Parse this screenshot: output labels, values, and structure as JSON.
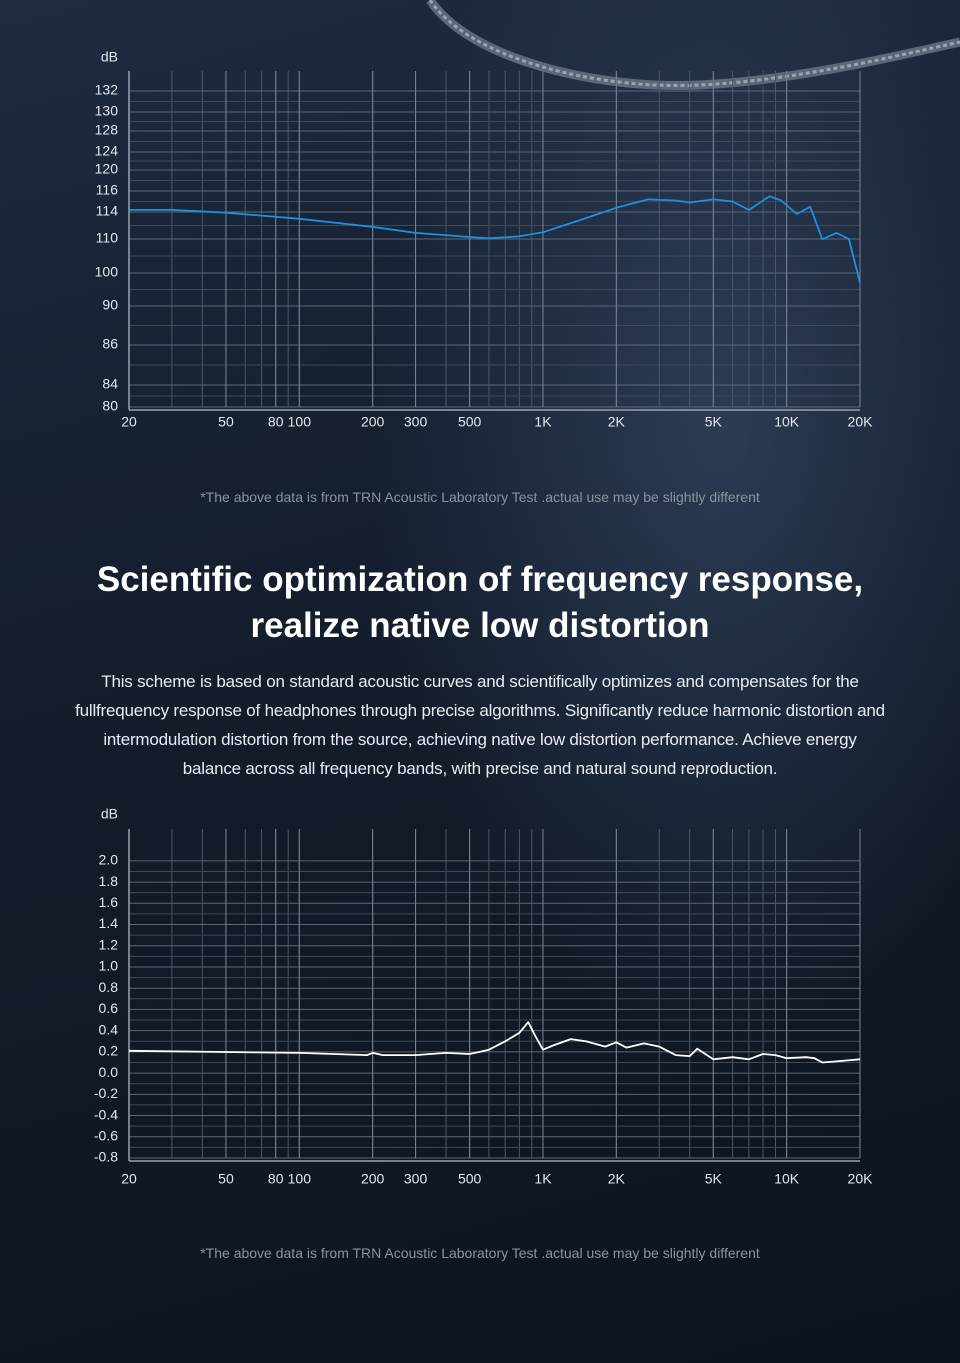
{
  "chart_data": [
    {
      "type": "line",
      "y_label": "dB",
      "xscale": "log",
      "grid": true,
      "x": [
        20,
        30,
        50,
        100,
        200,
        300,
        500,
        600,
        800,
        1000,
        1500,
        2000,
        2700,
        3500,
        4000,
        5000,
        6000,
        7000,
        8500,
        9500,
        11000,
        12500,
        14000,
        16000,
        18000,
        20000
      ],
      "series": [
        {
          "color": "#1f8fe0",
          "values": [
            114.2,
            114.2,
            113.9,
            113,
            111.8,
            110.9,
            110.3,
            110.1,
            110.4,
            111,
            113.1,
            114.4,
            115.2,
            115.1,
            114.9,
            115.2,
            115,
            114.2,
            115.5,
            115.1,
            113.7,
            114.5,
            109.9,
            110.9,
            110,
            97
          ]
        }
      ],
      "xlim": [
        20,
        20000
      ],
      "ylim": [
        80,
        134
      ],
      "xticks": [
        20,
        50,
        80,
        100,
        200,
        300,
        500,
        {
          "value": 1000,
          "label": "1K"
        },
        {
          "value": 2000,
          "label": "2K"
        },
        {
          "value": 5000,
          "label": "5K"
        },
        {
          "value": 10000,
          "label": "10K"
        },
        {
          "value": 20000,
          "label": "20K"
        }
      ],
      "yticks": [
        80,
        84,
        86,
        90,
        100,
        110,
        114,
        116,
        120,
        124,
        128,
        130,
        132
      ],
      "note": "*The above data is from TRN Acoustic Laboratory Test .actual use may be slightly different"
    },
    {
      "type": "line",
      "y_label": "dB",
      "xscale": "log",
      "grid": true,
      "x": [
        20,
        100,
        190,
        200,
        220,
        300,
        400,
        500,
        550,
        600,
        700,
        800,
        870,
        930,
        1000,
        1100,
        1300,
        1500,
        1800,
        2000,
        2200,
        2600,
        3000,
        3500,
        4000,
        4300,
        5000,
        6000,
        7000,
        8000,
        9000,
        10000,
        12000,
        13000,
        14000,
        16000,
        20000
      ],
      "series": [
        {
          "color": "#ffffff",
          "values": [
            0.21,
            0.19,
            0.17,
            0.19,
            0.17,
            0.17,
            0.19,
            0.18,
            0.2,
            0.22,
            0.3,
            0.38,
            0.48,
            0.35,
            0.22,
            0.26,
            0.32,
            0.3,
            0.25,
            0.29,
            0.24,
            0.28,
            0.25,
            0.17,
            0.16,
            0.23,
            0.13,
            0.15,
            0.13,
            0.18,
            0.17,
            0.14,
            0.15,
            0.14,
            0.1,
            0.11,
            0.13
          ]
        }
      ],
      "xlim": [
        20,
        20000
      ],
      "ylim": [
        -0.8,
        2.3
      ],
      "xticks": [
        20,
        50,
        80,
        100,
        200,
        300,
        500,
        {
          "value": 1000,
          "label": "1K"
        },
        {
          "value": 2000,
          "label": "2K"
        },
        {
          "value": 5000,
          "label": "5K"
        },
        {
          "value": 10000,
          "label": "10K"
        },
        {
          "value": 20000,
          "label": "20K"
        }
      ],
      "yticks": [
        -0.8,
        -0.6,
        -0.4,
        -0.2,
        {
          "value": 0,
          "label": "0.0"
        },
        0.2,
        0.4,
        0.6,
        0.8,
        {
          "value": 1,
          "label": "1.0"
        },
        1.2,
        1.4,
        1.6,
        1.8,
        {
          "value": 2,
          "label": "2.0"
        }
      ],
      "note": "*The above data is from TRN Acoustic Laboratory Test .actual use may be slightly different"
    }
  ],
  "headline": [
    "Scientific optimization of frequency response,",
    "realize native low distortion"
  ],
  "body": "This scheme is based on standard acoustic curves and scientifically optimizes and compensates for the fullfrequency response of headphones through precise algorithms. Significantly reduce harmonic distortion and intermodulation distortion from the source, achieving native low distortion performance. Achieve energy balance across all frequency bands, with precise and natural sound reproduction."
}
